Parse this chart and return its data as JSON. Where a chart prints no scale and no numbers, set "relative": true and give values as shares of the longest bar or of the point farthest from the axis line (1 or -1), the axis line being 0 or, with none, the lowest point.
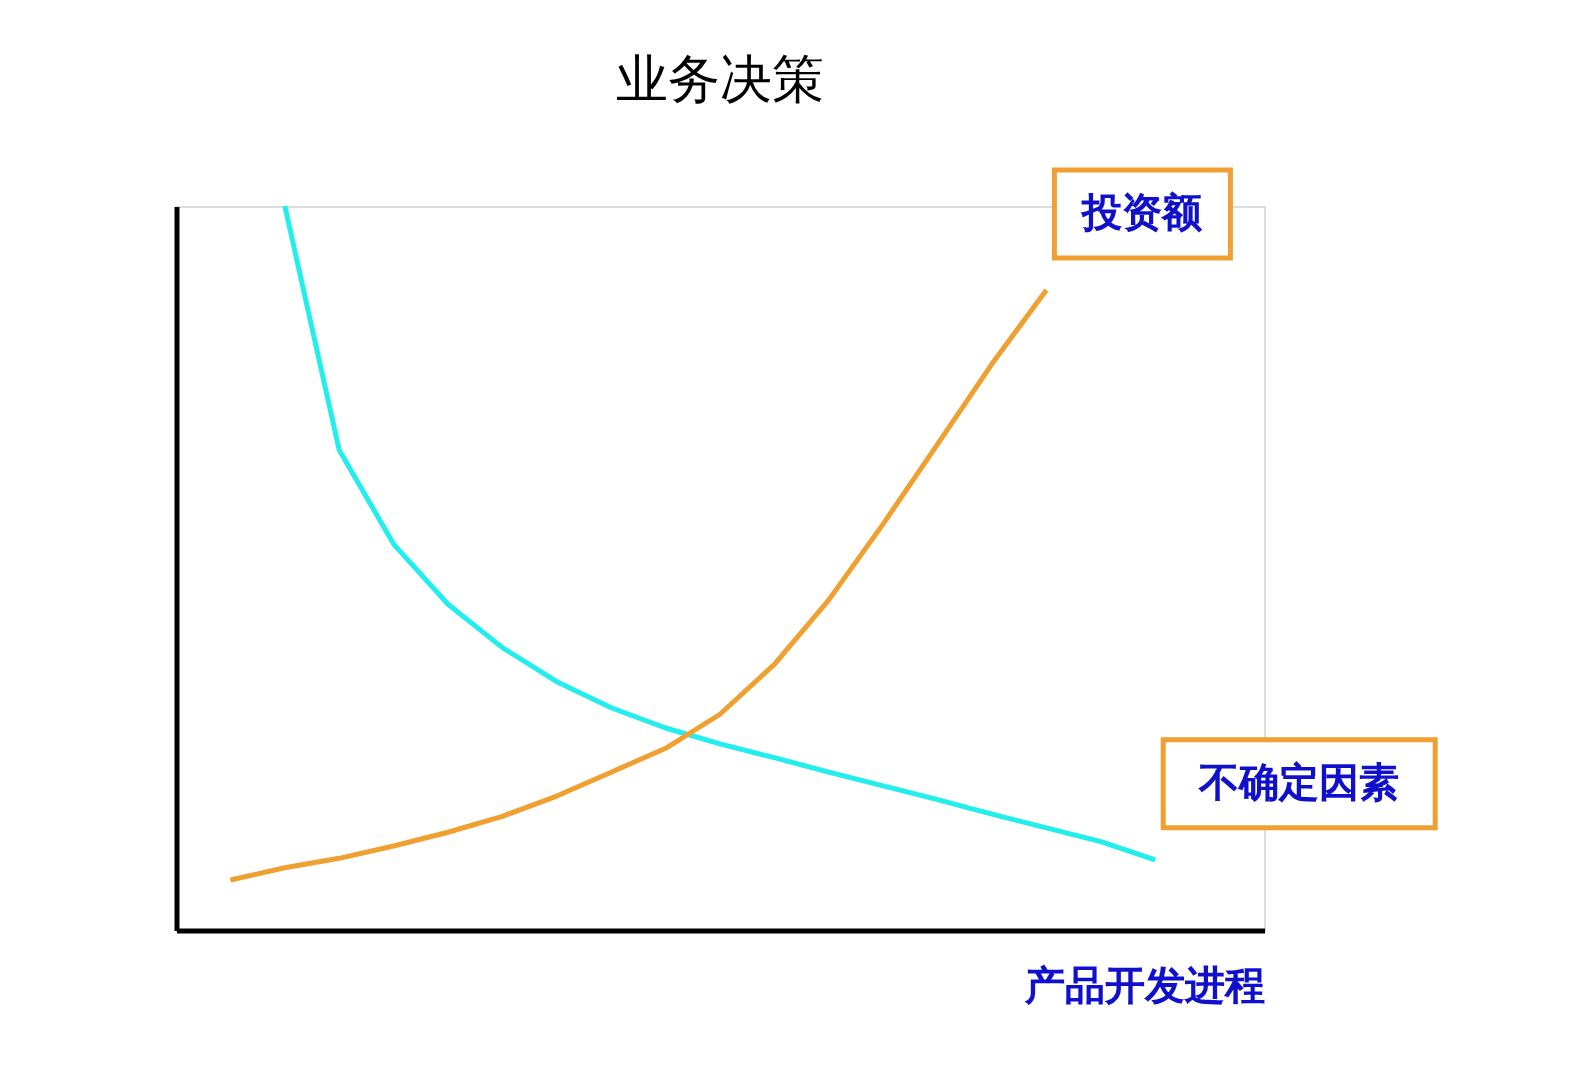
{
  "chart_data": {
    "type": "line",
    "title": "业务决策",
    "xlabel": "产品开发进程",
    "relative": true,
    "tick_labels": false,
    "grid": false,
    "legend": false,
    "marker": "none",
    "line_style": "solid",
    "categories": [
      null,
      null,
      null,
      null,
      null,
      null,
      null,
      null,
      null,
      null,
      null,
      null,
      null,
      null,
      null,
      null,
      null,
      null
    ],
    "series": [
      {
        "name": "不确定因素",
        "color": "#22eeee",
        "values": [
          null,
          1,
          0.663,
          0.533,
          0.45,
          0.39,
          0.343,
          0.307,
          0.279,
          0.257,
          0.238,
          0.218,
          0.199,
          0.18,
          0.16,
          0.141,
          0.122,
          0.097
        ]
      },
      {
        "name": "投资额",
        "color": "#f0a030",
        "values": [
          0.069,
          0.086,
          0.099,
          0.116,
          0.135,
          0.157,
          0.185,
          0.218,
          0.251,
          0.298,
          0.367,
          0.456,
          0.561,
          0.671,
          0.782,
          0.884,
          null,
          null
        ]
      }
    ]
  }
}
